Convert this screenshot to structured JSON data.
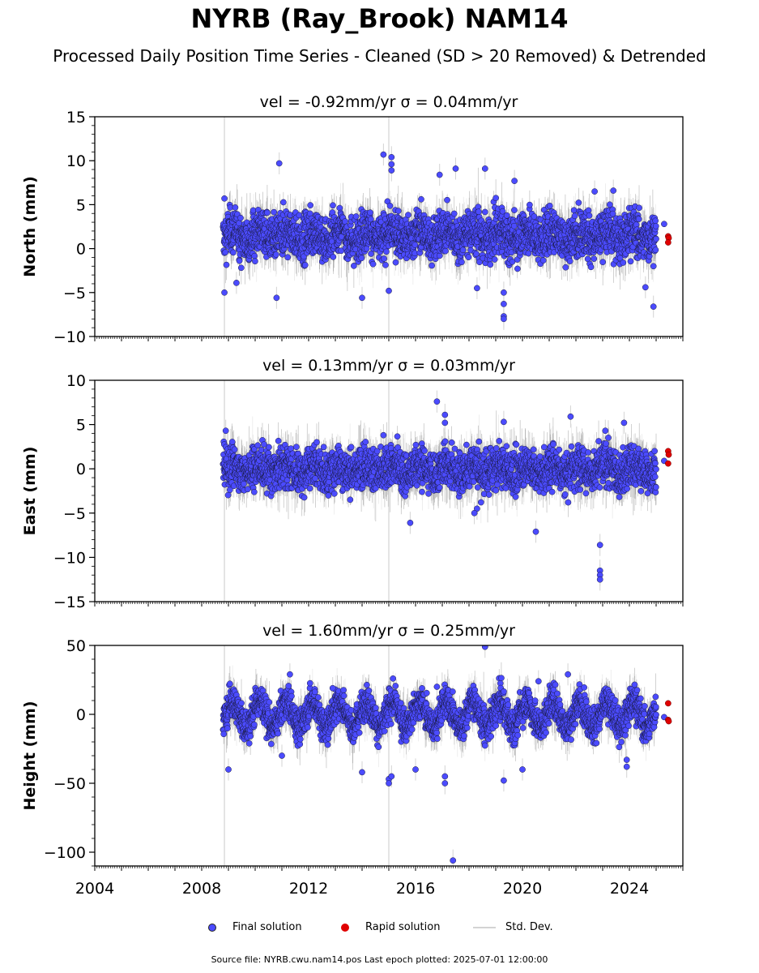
{
  "title": "NYRB (Ray_Brook) NAM14",
  "subtitle": "Processed Daily Position Time Series - Cleaned (SD > 20 Removed) & Detrended",
  "footer": "Source file: NYRB.cwu.nam14.pos  Last epoch plotted: 2025-07-01 12:00:00",
  "colors": {
    "final": "#4b4bff",
    "rapid": "#e00000",
    "std": "#d3d3d3",
    "std_dark": "#8a8a8a"
  },
  "legend": {
    "final_label": "Final solution",
    "rapid_label": "Rapid solution",
    "std_label": "Std. Dev."
  },
  "chart_data": [
    {
      "type": "scatter",
      "title": "vel = -0.92mm/yr   σ = 0.04mm/yr",
      "ylabel": "North (mm)",
      "xlim": [
        2004.0,
        2026.0
      ],
      "ylim": [
        -10,
        15
      ],
      "yticks": [
        -10,
        -5,
        0,
        5,
        10,
        15
      ],
      "xticks": [
        2004,
        2008,
        2012,
        2016,
        2020,
        2024
      ],
      "show_xticklabels": false,
      "final_series": {
        "name": "Final solution",
        "start": 2008.8,
        "end": 2025.0,
        "center": 1.5,
        "spread": 1.3,
        "sd": 1.3,
        "seasonal": 0.6
      },
      "outliers": [
        {
          "x": 2008.85,
          "y": 5.7
        },
        {
          "x": 2008.85,
          "y": -5.0
        },
        {
          "x": 2009.3,
          "y": -3.9
        },
        {
          "x": 2010.9,
          "y": 9.7
        },
        {
          "x": 2010.8,
          "y": -5.6
        },
        {
          "x": 2014.0,
          "y": -5.6
        },
        {
          "x": 2014.8,
          "y": 10.7
        },
        {
          "x": 2015.1,
          "y": 10.4
        },
        {
          "x": 2015.1,
          "y": 9.6
        },
        {
          "x": 2015.1,
          "y": 8.9
        },
        {
          "x": 2015.0,
          "y": -4.8
        },
        {
          "x": 2016.9,
          "y": 8.4
        },
        {
          "x": 2017.5,
          "y": 9.1
        },
        {
          "x": 2018.6,
          "y": 9.1
        },
        {
          "x": 2018.3,
          "y": -4.5
        },
        {
          "x": 2019.3,
          "y": -5.0
        },
        {
          "x": 2019.3,
          "y": -6.3
        },
        {
          "x": 2019.3,
          "y": -7.7
        },
        {
          "x": 2019.3,
          "y": -8.0
        },
        {
          "x": 2019.7,
          "y": 7.7
        },
        {
          "x": 2024.6,
          "y": -4.4
        },
        {
          "x": 2024.9,
          "y": -6.6
        },
        {
          "x": 2022.7,
          "y": 6.5
        },
        {
          "x": 2023.4,
          "y": 6.6
        }
      ],
      "rapid_points": [
        {
          "x": 2025.45,
          "y": 1.4
        },
        {
          "x": 2025.47,
          "y": 1.2
        },
        {
          "x": 2025.45,
          "y": 0.7
        }
      ],
      "rapid_gray": [
        {
          "x": 2025.3,
          "y": 2.8
        }
      ]
    },
    {
      "type": "scatter",
      "title": "vel = 0.13mm/yr   σ = 0.03mm/yr",
      "ylabel": "East (mm)",
      "xlim": [
        2004.0,
        2026.0
      ],
      "ylim": [
        -15,
        10
      ],
      "yticks": [
        -15,
        -10,
        -5,
        0,
        5,
        10
      ],
      "xticks": [
        2004,
        2008,
        2012,
        2016,
        2020,
        2024
      ],
      "show_xticklabels": false,
      "final_series": {
        "name": "Final solution",
        "start": 2008.8,
        "end": 2025.0,
        "center": 0.0,
        "spread": 1.2,
        "sd": 1.3,
        "seasonal": 0.5
      },
      "outliers": [
        {
          "x": 2008.9,
          "y": 4.3
        },
        {
          "x": 2014.8,
          "y": 3.8
        },
        {
          "x": 2015.8,
          "y": -6.1
        },
        {
          "x": 2016.8,
          "y": 7.6
        },
        {
          "x": 2017.1,
          "y": 6.1
        },
        {
          "x": 2017.1,
          "y": 5.2
        },
        {
          "x": 2018.3,
          "y": -4.5
        },
        {
          "x": 2018.2,
          "y": -5.0
        },
        {
          "x": 2019.3,
          "y": 5.3
        },
        {
          "x": 2020.5,
          "y": -7.1
        },
        {
          "x": 2021.8,
          "y": 5.9
        },
        {
          "x": 2022.9,
          "y": -8.6
        },
        {
          "x": 2022.9,
          "y": -11.5
        },
        {
          "x": 2022.9,
          "y": -12.0
        },
        {
          "x": 2022.9,
          "y": -12.5
        },
        {
          "x": 2023.1,
          "y": 4.3
        },
        {
          "x": 2023.8,
          "y": 5.2
        }
      ],
      "rapid_points": [
        {
          "x": 2025.45,
          "y": 2.0
        },
        {
          "x": 2025.47,
          "y": 1.6
        },
        {
          "x": 2025.45,
          "y": 0.6
        }
      ],
      "rapid_gray": [
        {
          "x": 2025.3,
          "y": 0.9
        }
      ]
    },
    {
      "type": "scatter",
      "title": "vel = 1.60mm/yr   σ = 0.25mm/yr",
      "ylabel": "Height (mm)",
      "xlim": [
        2004.0,
        2026.0
      ],
      "ylim": [
        -110,
        50
      ],
      "yticks": [
        -100,
        -50,
        0,
        50
      ],
      "xticks": [
        2004,
        2008,
        2012,
        2016,
        2020,
        2024
      ],
      "show_xticklabels": true,
      "final_series": {
        "name": "Final solution",
        "start": 2008.8,
        "end": 2025.0,
        "center": 0.0,
        "spread": 6.0,
        "sd": 7.0,
        "seasonal": 9.0
      },
      "outliers": [
        {
          "x": 2009.0,
          "y": -40.0
        },
        {
          "x": 2011.0,
          "y": -30.0
        },
        {
          "x": 2011.3,
          "y": 29.0
        },
        {
          "x": 2014.0,
          "y": -42.0
        },
        {
          "x": 2015.0,
          "y": -47.0
        },
        {
          "x": 2015.0,
          "y": -50.0
        },
        {
          "x": 2015.1,
          "y": -45.0
        },
        {
          "x": 2016.0,
          "y": -40.0
        },
        {
          "x": 2017.1,
          "y": -50.0
        },
        {
          "x": 2017.1,
          "y": -45.0
        },
        {
          "x": 2017.4,
          "y": -106.0
        },
        {
          "x": 2018.6,
          "y": 49.0
        },
        {
          "x": 2019.3,
          "y": -48.0
        },
        {
          "x": 2020.0,
          "y": -40.0
        },
        {
          "x": 2020.6,
          "y": 24.0
        },
        {
          "x": 2021.7,
          "y": 29.0
        },
        {
          "x": 2023.9,
          "y": -33.0
        },
        {
          "x": 2023.9,
          "y": -38.0
        },
        {
          "x": 2016.8,
          "y": 20.0
        },
        {
          "x": 2012.9,
          "y": 19.0
        }
      ],
      "rapid_points": [
        {
          "x": 2025.45,
          "y": 8.0
        },
        {
          "x": 2025.45,
          "y": -4.0
        },
        {
          "x": 2025.47,
          "y": -5.0
        }
      ],
      "rapid_gray": [
        {
          "x": 2025.3,
          "y": -2.0
        }
      ]
    }
  ]
}
